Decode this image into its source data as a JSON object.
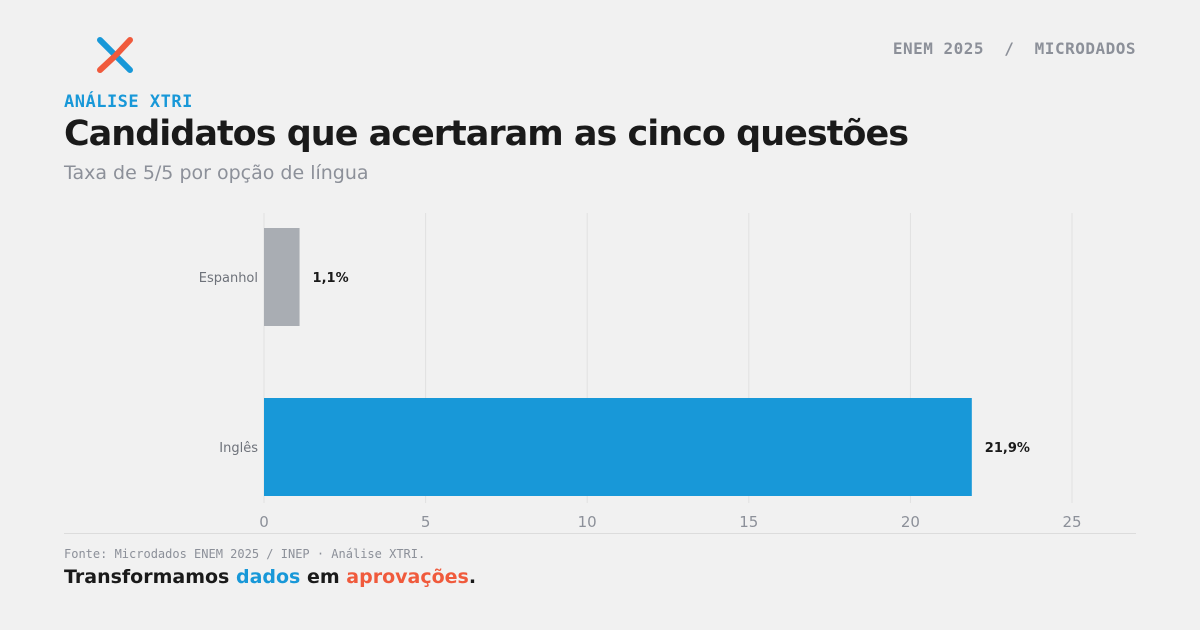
{
  "brand": {
    "logo_icon": "xtri-x-logo",
    "colors": {
      "blue": "#1898d8",
      "orange": "#f05a3c",
      "gray": "#a9adb3",
      "dark": "#1a1a1a"
    }
  },
  "header": {
    "breadcrumb": "ENEM 2025  /  MICRODADOS",
    "kicker": "ANÁLISE XTRI",
    "title": "Candidatos que acertaram as cinco questões",
    "subtitle": "Taxa de 5/5 por opção de língua"
  },
  "chart_data": {
    "type": "bar",
    "orientation": "horizontal",
    "categories": [
      "Espanhol",
      "Inglês"
    ],
    "values": [
      1.1,
      21.9
    ],
    "value_labels": [
      "1,1%",
      "21,9%"
    ],
    "bar_colors": [
      "#a9adb3",
      "#1898d8"
    ],
    "xlim": [
      0,
      25
    ],
    "xticks": [
      0,
      5,
      10,
      15,
      20,
      25
    ],
    "grid": true
  },
  "footer": {
    "source": "Fonte: Microdados ENEM 2025 / INEP · Análise XTRI.",
    "slogan": {
      "part1": "Transformamos ",
      "part2": "dados",
      "part3": " em ",
      "part4": "aprovações",
      "part5": "."
    }
  }
}
